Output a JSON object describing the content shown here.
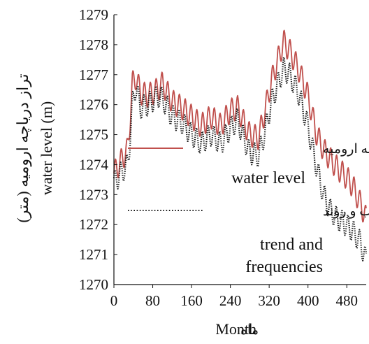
{
  "chart_data": {
    "type": "line",
    "xlabel": "Month",
    "xlabel_fa": "ماه",
    "ylabel_fa": "تراز دریاچه ارومیه (متر)",
    "ylabel_en": "water level (m)",
    "xlim": [
      0,
      520
    ],
    "ylim": [
      1270,
      1279
    ],
    "xticks": [
      0,
      80,
      160,
      240,
      320,
      400,
      480
    ],
    "yticks": [
      1270,
      1271,
      1272,
      1273,
      1274,
      1275,
      1276,
      1277,
      1278,
      1279
    ],
    "grid": false,
    "legend_position": "center-right",
    "series": [
      {
        "name": "تراز دریاچه ارومیه",
        "label_en": "water level",
        "color": "#c0504d",
        "style": "solid",
        "anchors": [
          [
            0,
            1273.7
          ],
          [
            14,
            1274.1
          ],
          [
            28,
            1274.5
          ],
          [
            32,
            1275.2
          ],
          [
            38,
            1276.7
          ],
          [
            45,
            1276.9
          ],
          [
            55,
            1276.4
          ],
          [
            70,
            1276.3
          ],
          [
            90,
            1276.5
          ],
          [
            100,
            1276.7
          ],
          [
            120,
            1276.1
          ],
          [
            140,
            1275.9
          ],
          [
            160,
            1275.6
          ],
          [
            180,
            1275.3
          ],
          [
            200,
            1275.6
          ],
          [
            220,
            1275.3
          ],
          [
            240,
            1275.8
          ],
          [
            255,
            1275.9
          ],
          [
            265,
            1275.5
          ],
          [
            280,
            1275.0
          ],
          [
            298,
            1274.9
          ],
          [
            310,
            1275.7
          ],
          [
            325,
            1276.8
          ],
          [
            338,
            1277.5
          ],
          [
            350,
            1278.1
          ],
          [
            362,
            1277.8
          ],
          [
            380,
            1277.2
          ],
          [
            398,
            1276.4
          ],
          [
            418,
            1275.0
          ],
          [
            432,
            1274.5
          ],
          [
            445,
            1274.2
          ],
          [
            460,
            1273.9
          ],
          [
            478,
            1273.6
          ],
          [
            492,
            1273.3
          ],
          [
            508,
            1272.7
          ],
          [
            520,
            1272.2
          ]
        ],
        "seasonal_amplitude": 0.4
      },
      {
        "name": "مجموع تناوب و روند",
        "label_en": "trend and frequencies",
        "color": "#1a1a1a",
        "style": "dotted",
        "anchors": [
          [
            0,
            1273.4
          ],
          [
            14,
            1273.7
          ],
          [
            28,
            1274.0
          ],
          [
            32,
            1274.6
          ],
          [
            38,
            1276.0
          ],
          [
            45,
            1276.6
          ],
          [
            55,
            1275.9
          ],
          [
            70,
            1276.0
          ],
          [
            90,
            1276.3
          ],
          [
            100,
            1276.2
          ],
          [
            120,
            1275.6
          ],
          [
            140,
            1275.4
          ],
          [
            160,
            1275.0
          ],
          [
            180,
            1274.7
          ],
          [
            200,
            1275.0
          ],
          [
            220,
            1274.7
          ],
          [
            240,
            1275.2
          ],
          [
            255,
            1275.5
          ],
          [
            265,
            1275.0
          ],
          [
            280,
            1274.4
          ],
          [
            298,
            1274.3
          ],
          [
            310,
            1275.0
          ],
          [
            325,
            1276.1
          ],
          [
            338,
            1276.7
          ],
          [
            350,
            1277.2
          ],
          [
            362,
            1277.0
          ],
          [
            380,
            1276.4
          ],
          [
            398,
            1275.4
          ],
          [
            418,
            1273.9
          ],
          [
            432,
            1273.0
          ],
          [
            445,
            1272.5
          ],
          [
            460,
            1272.2
          ],
          [
            478,
            1272.0
          ],
          [
            492,
            1271.8
          ],
          [
            508,
            1271.4
          ],
          [
            520,
            1270.8
          ]
        ],
        "seasonal_amplitude": 0.38
      }
    ]
  }
}
